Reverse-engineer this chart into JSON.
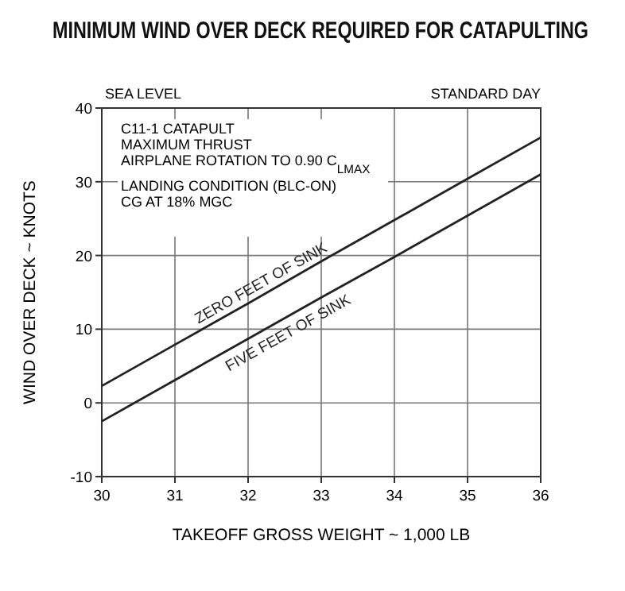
{
  "chart_data": {
    "type": "line",
    "title": "MINIMUM WIND OVER DECK REQUIRED FOR CATAPULTING",
    "xlabel": "TAKEOFF GROSS WEIGHT ~ 1,000 LB",
    "ylabel": "WIND OVER DECK ~ KNOTS",
    "xlim": [
      30,
      36
    ],
    "xticks": [
      30,
      31,
      32,
      33,
      34,
      35,
      36
    ],
    "ylim": [
      -10,
      40
    ],
    "yticks": [
      -10,
      0,
      10,
      20,
      30,
      40
    ],
    "grid": true,
    "x": [
      30,
      31,
      32,
      33,
      34,
      35,
      36
    ],
    "line_style": "solid",
    "marker": "none",
    "annotations": [
      "SEA LEVEL",
      "STANDARD DAY",
      "C11-1 CATAPULT",
      "MAXIMUM THRUST",
      "AIRPLANE ROTATION TO 0.90 C$_{LMAX}$",
      "LANDING CONDITION (BLC-ON)",
      "CG AT 18% MGC"
    ],
    "series": [
      {
        "name": "ZERO FEET OF SINK",
        "color": "#222222",
        "values": [
          2.3,
          7.9,
          13.5,
          19.2,
          24.8,
          30.4,
          36
        ]
      },
      {
        "name": "FIVE FEET OF SINK",
        "color": "#222222",
        "values": [
          -2.5,
          3.1,
          8.7,
          14.3,
          19.8,
          25.4,
          31
        ]
      }
    ]
  }
}
